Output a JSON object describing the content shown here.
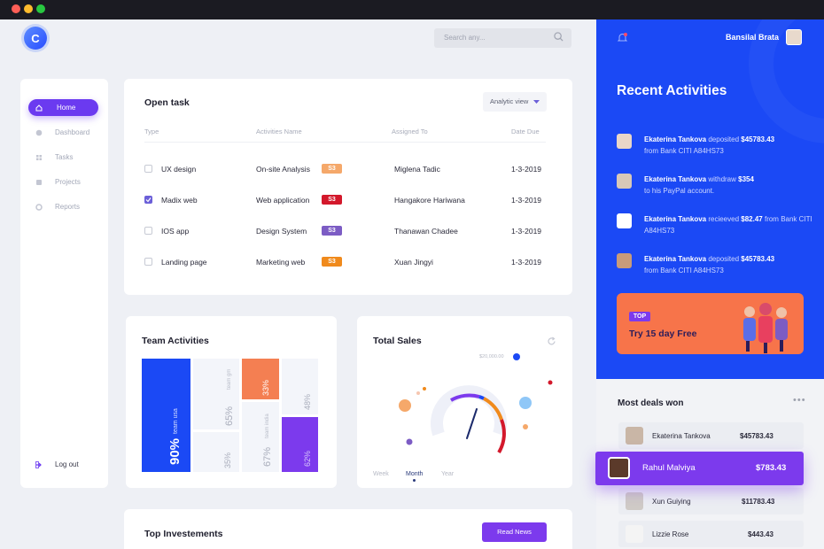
{
  "window": {
    "controls": [
      "close",
      "minimize",
      "maximize"
    ]
  },
  "app": {
    "logo_letter": "C"
  },
  "search": {
    "placeholder": "Search any..."
  },
  "sidebar": {
    "items": [
      {
        "label": "Home",
        "icon": "home-icon",
        "active": true
      },
      {
        "label": "Dashboard",
        "icon": "dashboard-icon",
        "active": false
      },
      {
        "label": "Tasks",
        "icon": "tasks-icon",
        "active": false
      },
      {
        "label": "Projects",
        "icon": "projects-icon",
        "active": false
      },
      {
        "label": "Reports",
        "icon": "reports-icon",
        "active": false
      }
    ],
    "logout": "Log out"
  },
  "open_task": {
    "title": "Open task",
    "view_button": "Analytic view",
    "columns": [
      "Type",
      "Activities Name",
      "Assigned To",
      "Date Due"
    ],
    "rows": [
      {
        "type": "UX design",
        "activity": "On-site Analysis",
        "tag": "S3",
        "tag_color": "#f5a86a",
        "assigned": "Miglena Tadic",
        "date": "1-3-2019",
        "checked": false
      },
      {
        "type": "Madix web",
        "activity": "Web application",
        "tag": "S3",
        "tag_color": "#d3182b",
        "assigned": "Hangakore Hariwana",
        "date": "1-3-2019",
        "checked": true
      },
      {
        "type": "IOS app",
        "activity": "Design System",
        "tag": "S3",
        "tag_color": "#7c5cc4",
        "assigned": "Thanawan Chadee",
        "date": "1-3-2019",
        "checked": false
      },
      {
        "type": "Landing page",
        "activity": "Marketing web",
        "tag": "S3",
        "tag_color": "#f08a1c",
        "assigned": "Xuan Jingyi",
        "date": "1-3-2019",
        "checked": false
      }
    ]
  },
  "team_activities": {
    "title": "Team Activities",
    "tiles": [
      {
        "value": "90%",
        "label": "team usa",
        "color": "#1b49f5"
      },
      {
        "value": "65%",
        "label": "team gm",
        "color": "#f3f5fa"
      },
      {
        "value": "35%",
        "label": "",
        "color": "#f3f5fa"
      },
      {
        "value": "33%",
        "label": "",
        "color": "#f47f52"
      },
      {
        "value": "67%",
        "label": "team india",
        "color": "#f3f5fa"
      },
      {
        "value": "48%",
        "label": "",
        "color": "#f3f5fa"
      },
      {
        "value": "62%",
        "label": "",
        "color": "#7c3aed"
      }
    ]
  },
  "total_sales": {
    "title": "Total Sales",
    "value_label": "$20,000.00",
    "tabs": [
      "Week",
      "Month",
      "Year"
    ],
    "active_tab": "Month"
  },
  "top_investments": {
    "title": "Top Investements",
    "button": "Read News"
  },
  "header": {
    "user_name": "Bansilal Brata"
  },
  "recent": {
    "title": "Recent Activities",
    "items": [
      {
        "name": "Ekaterina Tankova",
        "action": "deposited",
        "amount": "$45783.43",
        "detail": "from Bank CITI A84HS73"
      },
      {
        "name": "Ekaterina Tankova",
        "action": "withdraw",
        "amount": "$354",
        "detail": "to his PayPal account."
      },
      {
        "name": "Ekaterina Tankova",
        "action": "recieeved",
        "amount": "$82.47",
        "detail": "from Bank CITI A84HS73"
      },
      {
        "name": "Ekaterina Tankova",
        "action": "deposited",
        "amount": "$45783.43",
        "detail": "from Bank CITI A84HS73"
      }
    ]
  },
  "promo": {
    "badge": "TOP",
    "text": "Try 15 day Free"
  },
  "deals": {
    "title": "Most deals won",
    "items": [
      {
        "name": "Ekaterina Tankova",
        "amount": "$45783.43"
      },
      {
        "name": "Rahul Malviya",
        "amount": "$783.43",
        "highlighted": true
      },
      {
        "name": "Xun Guiying",
        "amount": "$11783.43"
      },
      {
        "name": "Lizzie Rose",
        "amount": "$443.43"
      }
    ]
  }
}
